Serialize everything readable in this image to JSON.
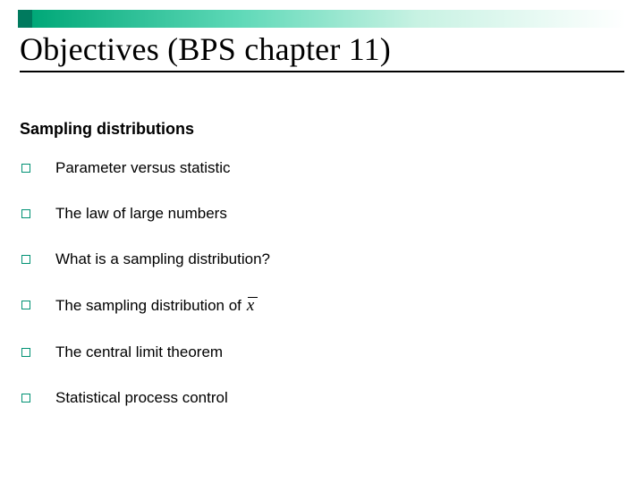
{
  "accent_color": "#009173",
  "bar_solid_color": "#007a5e",
  "title": "Objectives (BPS chapter 11)",
  "subtitle": "Sampling distributions",
  "bullets": [
    {
      "text": "Parameter versus statistic",
      "has_xbar": false
    },
    {
      "text": "The law of large numbers",
      "has_xbar": false
    },
    {
      "text": "What is a sampling distribution?",
      "has_xbar": false
    },
    {
      "text": "The sampling distribution of",
      "has_xbar": true
    },
    {
      "text": "The central limit theorem",
      "has_xbar": false
    },
    {
      "text": "Statistical process control",
      "has_xbar": false
    }
  ],
  "xbar_symbol": "x"
}
